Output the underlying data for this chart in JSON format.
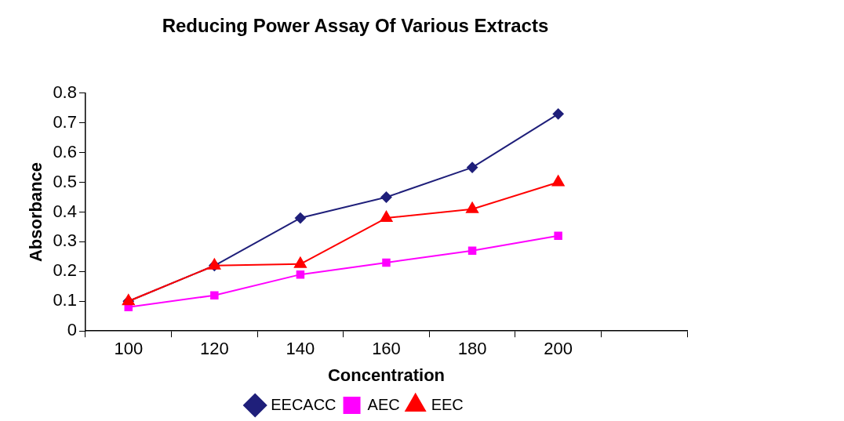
{
  "chart_data": {
    "type": "line",
    "title": "Reducing Power Assay Of Various Extracts",
    "xlabel": "Concentration",
    "ylabel": "Absorbance",
    "categories": [
      "100",
      "120",
      "140",
      "160",
      "180",
      "200",
      null
    ],
    "series": [
      {
        "name": "EECACC",
        "color": "#1f1f7a",
        "marker": "diamond",
        "values": [
          0.1,
          0.22,
          0.38,
          0.45,
          0.55,
          0.73,
          null
        ]
      },
      {
        "name": "AEC",
        "color": "#ff00ff",
        "marker": "square",
        "values": [
          0.08,
          0.12,
          0.19,
          0.23,
          0.27,
          0.32,
          null
        ]
      },
      {
        "name": "EEC",
        "color": "#ff0000",
        "marker": "triangle",
        "values": [
          0.1,
          0.22,
          0.225,
          0.38,
          0.41,
          0.5,
          null
        ]
      }
    ],
    "ylim": [
      0,
      0.8
    ],
    "yticks": [
      0,
      0.1,
      0.2,
      0.3,
      0.4,
      0.5,
      0.6,
      0.7,
      0.8
    ],
    "grid": false,
    "legend": "bottom"
  }
}
